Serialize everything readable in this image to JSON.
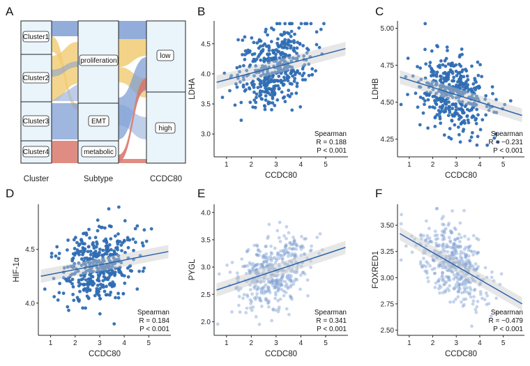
{
  "alluvial": {
    "label": "A",
    "axis_labels": [
      "Cluster",
      "Subtype",
      "CCDC80"
    ],
    "clusters": [
      "Cluster1",
      "Cluster2",
      "Cluster3",
      "Cluster4"
    ],
    "subtypes": [
      "proliferation",
      "EMT",
      "metabolic"
    ],
    "ccdc80_levels": [
      "low",
      "high"
    ],
    "colors": {
      "proliferation": "#f0cb72",
      "EMT": "#7f9fd3",
      "metabolic": "#d9796d",
      "node_fill": "#e9f4fb"
    }
  },
  "chart_data": [
    {
      "panel": "B",
      "type": "scatter",
      "xlabel": "CCDC80",
      "ylabel": "LDHA",
      "xlim": [
        0.5,
        5.9
      ],
      "ylim": [
        2.62,
        4.88
      ],
      "xticks": [
        1,
        2,
        3,
        4,
        5
      ],
      "yticks": [
        3.0,
        3.5,
        4.0,
        4.5
      ],
      "ytick_labels": [
        "3.0",
        "3.5",
        "4.0",
        "4.5"
      ],
      "fit": {
        "x0": 0.6,
        "y0": 3.86,
        "x1": 5.8,
        "y1": 4.42
      },
      "point_color": "#2f6db3",
      "point_alpha": 0.95,
      "method": "Spearman",
      "R": "R = 0.188",
      "P": "P < 0.001"
    },
    {
      "panel": "C",
      "type": "scatter",
      "xlabel": "CCDC80",
      "ylabel": "LDHB",
      "xlim": [
        0.5,
        5.9
      ],
      "ylim": [
        4.13,
        5.05
      ],
      "xticks": [
        1,
        2,
        3,
        4,
        5
      ],
      "yticks": [
        4.25,
        4.5,
        4.75,
        5.0
      ],
      "ytick_labels": [
        "4.25",
        "4.50",
        "4.75",
        "5.00"
      ],
      "fit": {
        "x0": 0.6,
        "y0": 4.67,
        "x1": 5.8,
        "y1": 4.41
      },
      "point_color": "#2f6db3",
      "point_alpha": 0.95,
      "method": "Spearman",
      "R": "R = −0.231",
      "P": "P < 0.001"
    },
    {
      "panel": "D",
      "type": "scatter",
      "xlabel": "CCDC80",
      "ylabel": "HIF-1α",
      "xlim": [
        0.5,
        5.9
      ],
      "ylim": [
        3.7,
        4.92
      ],
      "xticks": [
        1,
        2,
        3,
        4,
        5
      ],
      "yticks": [
        4.0,
        4.5
      ],
      "ytick_labels": [
        "4.0",
        "4.5"
      ],
      "fit": {
        "x0": 0.6,
        "y0": 4.25,
        "x1": 5.8,
        "y1": 4.48
      },
      "point_color": "#2f6db3",
      "point_alpha": 0.95,
      "method": "Spearman",
      "R": "R = 0.184",
      "P": "P < 0.001"
    },
    {
      "panel": "E",
      "type": "scatter",
      "xlabel": "CCDC80",
      "ylabel": "PYGL",
      "xlim": [
        0.5,
        5.9
      ],
      "ylim": [
        1.75,
        4.15
      ],
      "xticks": [
        1,
        2,
        3,
        4,
        5
      ],
      "yticks": [
        2.0,
        2.5,
        3.0,
        3.5,
        4.0
      ],
      "ytick_labels": [
        "2.0",
        "2.5",
        "3.0",
        "3.5",
        "4.0"
      ],
      "fit": {
        "x0": 0.6,
        "y0": 2.58,
        "x1": 5.8,
        "y1": 3.36
      },
      "point_color": "#7f9fd3",
      "point_alpha": 0.45,
      "method": "Spearman",
      "R": "R = 0.341",
      "P": "P < 0.001"
    },
    {
      "panel": "F",
      "type": "scatter",
      "xlabel": "CCDC80",
      "ylabel": "FOXRED1",
      "xlim": [
        0.5,
        5.9
      ],
      "ylim": [
        2.45,
        3.7
      ],
      "xticks": [
        1,
        2,
        3,
        4,
        5
      ],
      "yticks": [
        2.5,
        2.75,
        3.0,
        3.25,
        3.5
      ],
      "ytick_labels": [
        "2.50",
        "2.75",
        "3.00",
        "3.25",
        "3.50"
      ],
      "fit": {
        "x0": 0.6,
        "y0": 3.42,
        "x1": 5.8,
        "y1": 2.75
      },
      "point_color": "#7f9fd3",
      "point_alpha": 0.45,
      "method": "Spearman",
      "R": "R = −0.479",
      "P": "P < 0.001"
    }
  ]
}
